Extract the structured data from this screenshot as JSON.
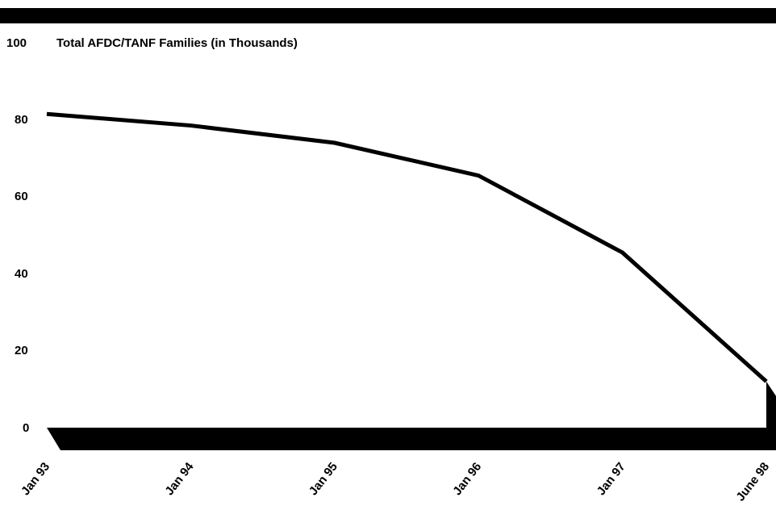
{
  "chart_data": {
    "type": "line",
    "title": "Total AFDC/TANF Families (in Thousands)",
    "xlabel": "",
    "ylabel": "",
    "ylim": [
      0,
      100
    ],
    "yticks": [
      "100",
      "80",
      "60",
      "40",
      "20",
      "0"
    ],
    "categories": [
      "Jan 93",
      "Jan 94",
      "Jan 95",
      "Jan 96",
      "Jan 97",
      "June 98"
    ],
    "values": [
      81.5,
      78.5,
      74,
      65.5,
      45.5,
      12
    ],
    "grid": false,
    "legend": "none",
    "colors": {
      "line": "#000000",
      "frame": "#000000",
      "background": "#ffffff"
    }
  }
}
